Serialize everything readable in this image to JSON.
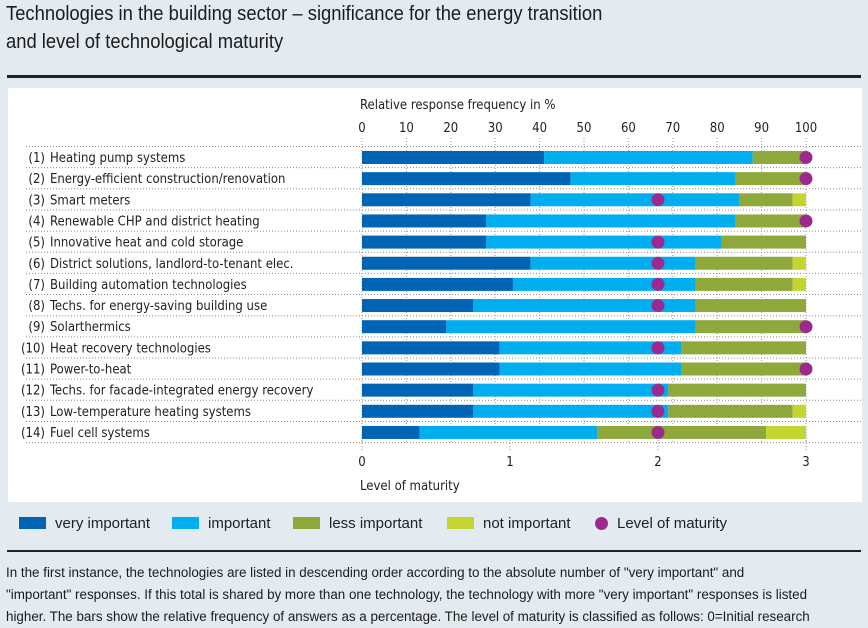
{
  "header": {
    "title_line1": "Technologies in the building sector – significance for the energy transition",
    "title_line2": "and level of technological maturity"
  },
  "colors": {
    "very_important": "#0064b4",
    "important": "#00aeef",
    "less_important": "#8ea83b",
    "not_important": "#c3d531",
    "maturity": "#9c2a8e",
    "panel": "#ffffff",
    "background": "#e3eaf0"
  },
  "legend": {
    "items": [
      {
        "key": "very_important",
        "label": "very important",
        "shape": "square"
      },
      {
        "key": "important",
        "label": "important",
        "shape": "square"
      },
      {
        "key": "less_important",
        "label": "less important",
        "shape": "square"
      },
      {
        "key": "not_important",
        "label": "not important",
        "shape": "square"
      },
      {
        "key": "maturity",
        "label": "Level of maturity",
        "shape": "circle"
      }
    ]
  },
  "chart_data": {
    "type": "bar",
    "orientation": "horizontal",
    "stacked": true,
    "title": "Technologies in the building sector – significance for the energy transition and level of technological maturity",
    "xlabel_top": "Relative response frequency in %",
    "xlabel_bottom": "Level of maturity",
    "x_top_ticks": [
      "0",
      "10",
      "20",
      "30",
      "40",
      "50",
      "60",
      "70",
      "80",
      "90",
      "100"
    ],
    "x_top_range": [
      0,
      100
    ],
    "x_bottom_ticks": [
      "0",
      "1",
      "2",
      "3"
    ],
    "x_bottom_range": [
      0,
      3
    ],
    "grid": true,
    "legend_position": "bottom",
    "categories": [
      "(1) Heating pump systems",
      "(2) Energy-efficient construction/renovation",
      "(3) Smart meters",
      "(4) Renewable CHP and district heating",
      "(5) Innovative heat and cold storage",
      "(6) District solutions, landlord-to-tenant elec.",
      "(7) Building automation technologies",
      "(8) Techs. for energy-saving building use",
      "(9) Solarthermics",
      "(10) Heat recovery technologies",
      "(11) Power-to-heat",
      "(12) Techs. for facade-integrated energy recovery",
      "(13) Low-temperature heating systems",
      "(14) Fuel cell systems"
    ],
    "series": [
      {
        "name": "very important",
        "key": "very_important",
        "values": [
          41,
          47,
          38,
          28,
          28,
          38,
          34,
          25,
          19,
          31,
          31,
          25,
          25,
          13
        ]
      },
      {
        "name": "important",
        "key": "important",
        "values": [
          47,
          37,
          47,
          56,
          53,
          37,
          41,
          50,
          56,
          41,
          41,
          44,
          44,
          40
        ]
      },
      {
        "name": "less important",
        "key": "less_important",
        "values": [
          12,
          16,
          12,
          16,
          19,
          22,
          22,
          25,
          25,
          28,
          28,
          31,
          28,
          38
        ]
      },
      {
        "name": "not important",
        "key": "not_important",
        "values": [
          0,
          0,
          3,
          0,
          0,
          3,
          3,
          0,
          0,
          0,
          0,
          0,
          3,
          9
        ]
      }
    ],
    "maturity": {
      "name": "Level of maturity",
      "values": [
        3,
        3,
        2,
        3,
        2,
        2,
        2,
        2,
        3,
        2,
        3,
        2,
        2,
        2
      ]
    }
  },
  "footnote": {
    "line1": "In the first instance, the technologies are listed in descending order according to the absolute number of \"very important\" and",
    "line2": "\"important\" responses. If this total is shared by more than one technology, the technology with more \"very important\" responses is listed",
    "line3": "higher. The bars show the relative frequency of answers as a percentage. The level of maturity is classified as follows: 0=Initial research"
  }
}
